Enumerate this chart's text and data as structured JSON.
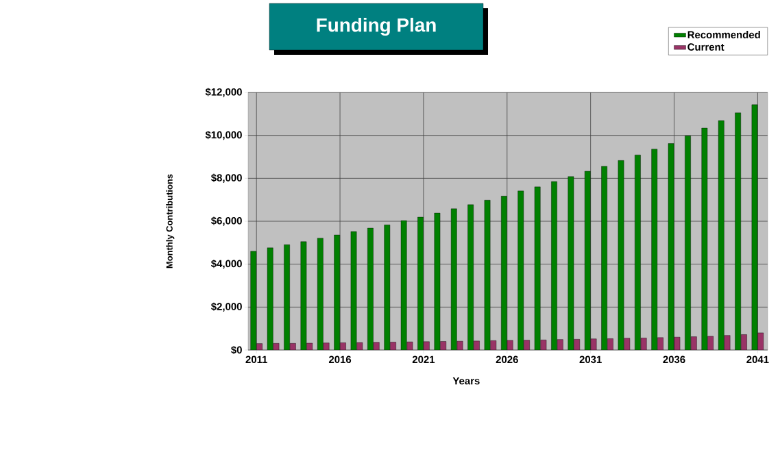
{
  "chart_data": {
    "type": "bar",
    "title": "Funding Plan",
    "xlabel": "Years",
    "ylabel": "Monthly Contributions",
    "x": [
      2011,
      2012,
      2013,
      2014,
      2015,
      2016,
      2017,
      2018,
      2019,
      2020,
      2021,
      2022,
      2023,
      2024,
      2025,
      2026,
      2027,
      2028,
      2029,
      2030,
      2031,
      2032,
      2033,
      2034,
      2035,
      2036,
      2037,
      2038,
      2039,
      2040,
      2041
    ],
    "series": [
      {
        "name": "Recommended",
        "color": "#008000",
        "values": [
          4600,
          4760,
          4910,
          5050,
          5210,
          5360,
          5520,
          5680,
          5830,
          6030,
          6190,
          6380,
          6580,
          6770,
          6980,
          7170,
          7410,
          7600,
          7850,
          8080,
          8330,
          8560,
          8830,
          9090,
          9360,
          9620,
          9980,
          10340,
          10690,
          11050,
          11430
        ]
      },
      {
        "name": "Current",
        "color": "#993366",
        "values": [
          300,
          310,
          310,
          320,
          330,
          340,
          350,
          360,
          370,
          380,
          390,
          400,
          410,
          420,
          440,
          450,
          460,
          470,
          490,
          500,
          520,
          530,
          550,
          560,
          580,
          600,
          620,
          640,
          680,
          720,
          800
        ]
      }
    ],
    "xlim": [
      2010.5,
      2041.6
    ],
    "xticks": [
      2011,
      2016,
      2021,
      2026,
      2031,
      2036,
      2041
    ],
    "ylim": [
      0,
      12000
    ],
    "yticks": [
      {
        "value": 0,
        "label": "$0"
      },
      {
        "value": 2000,
        "label": "$2,000"
      },
      {
        "value": 4000,
        "label": "$4,000"
      },
      {
        "value": 6000,
        "label": "$6,000"
      },
      {
        "value": 8000,
        "label": "$8,000"
      },
      {
        "value": 10000,
        "label": "$10,000"
      },
      {
        "value": 12000,
        "label": "$12,000"
      }
    ],
    "grid": true,
    "legend": "top right"
  }
}
